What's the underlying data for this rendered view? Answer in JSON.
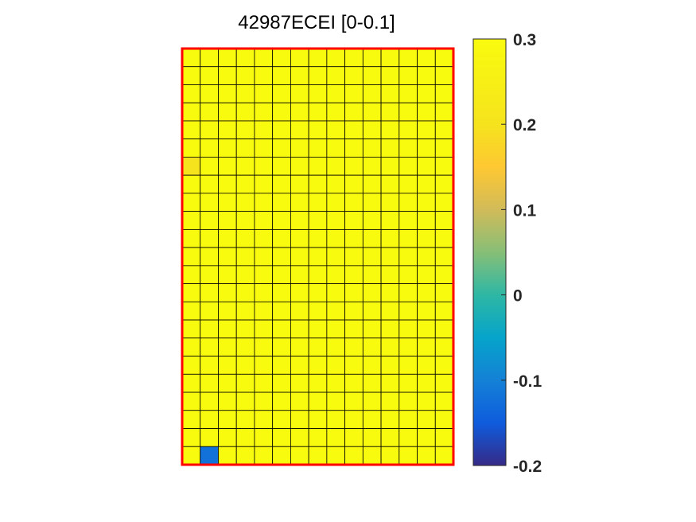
{
  "chart_data": {
    "type": "heatmap",
    "title": "42987ECEI [0-0.1]",
    "rows": 23,
    "cols": 15,
    "default_value": 0.3,
    "cells": [
      {
        "row": 6,
        "col": 0,
        "value": 0.2
      },
      {
        "row": 22,
        "col": 1,
        "value": -0.12
      }
    ],
    "clim": [
      -0.2,
      0.3
    ],
    "colormap": "parula",
    "colorbar_ticks": [
      {
        "value": 0.3,
        "label": "0.3"
      },
      {
        "value": 0.2,
        "label": "0.2"
      },
      {
        "value": 0.1,
        "label": "0.1"
      },
      {
        "value": 0,
        "label": "0"
      },
      {
        "value": -0.1,
        "label": "-0.1"
      },
      {
        "value": -0.2,
        "label": "-0.2"
      }
    ],
    "border_color": "#ff0000",
    "grid_color": "#000000"
  }
}
